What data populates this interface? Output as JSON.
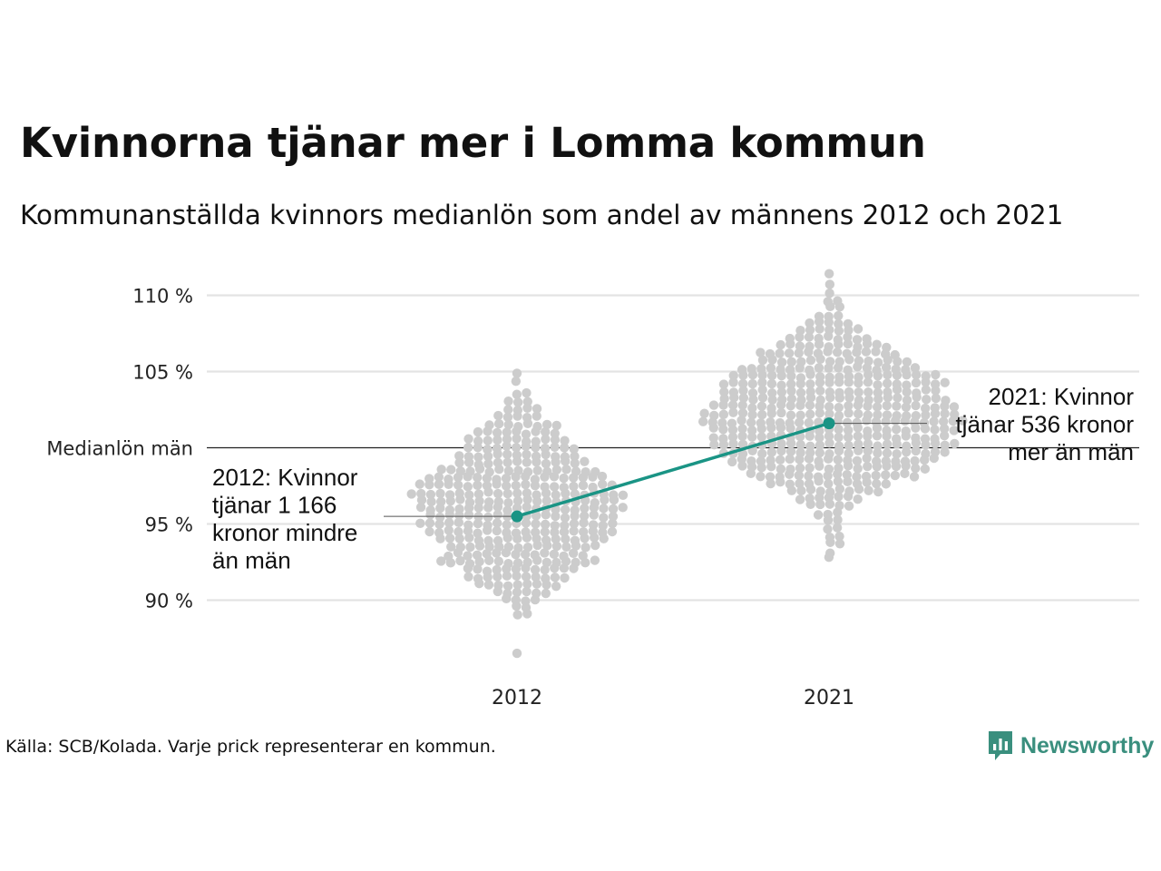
{
  "title": "Kvinnorna tjänar mer i Lomma kommun",
  "subtitle": "Kommunanställda kvinnors medianlön som andel av männens 2012 och 2021",
  "source": "Källa: SCB/Kolada. Varje prick representerar en kommun.",
  "logo_text": "Newsworthy",
  "colors": {
    "highlight": "#1a9485",
    "dots": "#cccccc",
    "grid": "#e3e3e3",
    "reference": "#222222",
    "logo": "#3a8f7e"
  },
  "chart_data": {
    "type": "scatter",
    "subtype": "beeswarm",
    "categories": [
      "2012",
      "2021"
    ],
    "ylim": [
      85.5,
      112
    ],
    "yticks": [
      {
        "value": 90,
        "label": "90 %"
      },
      {
        "value": 95,
        "label": "95 %"
      },
      {
        "value": 100,
        "label": "Medianlön män"
      },
      {
        "value": 105,
        "label": "105 %"
      },
      {
        "value": 110,
        "label": "110 %"
      }
    ],
    "grid": true,
    "reference_line": {
      "value": 100,
      "label": "Medianlön män"
    },
    "distribution": [
      {
        "category": "2012",
        "min": 86.5,
        "max": 105.0,
        "center": 96.5
      },
      {
        "category": "2021",
        "min": 92.5,
        "max": 111.3,
        "center": 101.5
      }
    ],
    "highlight": {
      "name": "Lomma",
      "x": [
        "2012",
        "2021"
      ],
      "values": [
        95.5,
        101.6
      ]
    },
    "annotations": [
      {
        "category": "2012",
        "lines": [
          "2012: Kvinnor",
          "tjänar 1 166",
          "kronor mindre",
          "än män"
        ]
      },
      {
        "category": "2021",
        "lines": [
          "2021: Kvinnor",
          "tjänar 536 kronor",
          "mer än män"
        ]
      }
    ]
  }
}
